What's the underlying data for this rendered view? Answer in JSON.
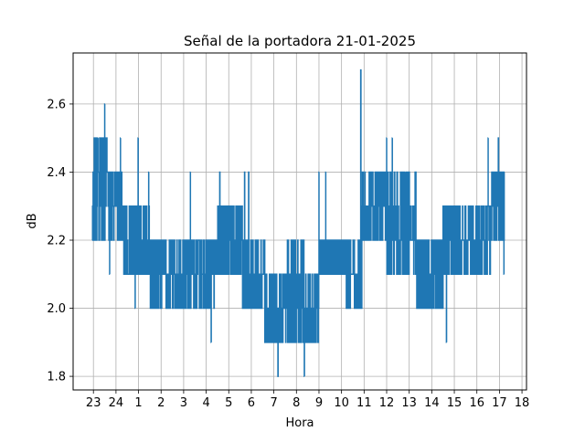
{
  "chart_data": {
    "type": "line",
    "title": "Señal de la portadora 21-01-2025",
    "xlabel": "Hora",
    "ylabel": "dB",
    "x_ticks": [
      "23",
      "24",
      "1",
      "2",
      "3",
      "4",
      "5",
      "6",
      "7",
      "8",
      "9",
      "10",
      "11",
      "12",
      "13",
      "14",
      "15",
      "16",
      "17",
      "18"
    ],
    "x_tick_positions": [
      23,
      24,
      25,
      26,
      27,
      28,
      29,
      30,
      31,
      32,
      33,
      34,
      35,
      36,
      37,
      38,
      39,
      40,
      41,
      42
    ],
    "xlim": [
      22.1,
      42.2
    ],
    "ylim": [
      1.76,
      2.75
    ],
    "y_ticks": [
      1.8,
      2.0,
      2.2,
      2.4,
      2.6
    ],
    "grid": true,
    "series": [
      {
        "color": "#1f77b4",
        "segments": [
          {
            "x_start": 22.95,
            "x_end": 23.6,
            "low": 2.2,
            "high": 2.5
          },
          {
            "x_start": 23.6,
            "x_end": 24.3,
            "low": 2.2,
            "high": 2.4
          },
          {
            "x_start": 24.3,
            "x_end": 25.5,
            "low": 2.1,
            "high": 2.3
          },
          {
            "x_start": 25.5,
            "x_end": 27.0,
            "low": 2.0,
            "high": 2.2
          },
          {
            "x_start": 27.0,
            "x_end": 28.5,
            "low": 2.0,
            "high": 2.2
          },
          {
            "x_start": 28.5,
            "x_end": 29.6,
            "low": 2.1,
            "high": 2.3
          },
          {
            "x_start": 29.6,
            "x_end": 30.6,
            "low": 2.0,
            "high": 2.2
          },
          {
            "x_start": 30.6,
            "x_end": 31.6,
            "low": 1.9,
            "high": 2.1
          },
          {
            "x_start": 31.6,
            "x_end": 32.4,
            "low": 1.9,
            "high": 2.2
          },
          {
            "x_start": 32.4,
            "x_end": 33.0,
            "low": 1.9,
            "high": 2.1
          },
          {
            "x_start": 33.0,
            "x_end": 34.2,
            "low": 2.1,
            "high": 2.2
          },
          {
            "x_start": 34.2,
            "x_end": 34.9,
            "low": 2.0,
            "high": 2.2
          },
          {
            "x_start": 34.9,
            "x_end": 36.0,
            "low": 2.2,
            "high": 2.4
          },
          {
            "x_start": 36.0,
            "x_end": 37.3,
            "low": 2.1,
            "high": 2.4
          },
          {
            "x_start": 37.3,
            "x_end": 38.5,
            "low": 2.0,
            "high": 2.2
          },
          {
            "x_start": 38.5,
            "x_end": 39.6,
            "low": 2.1,
            "high": 2.3
          },
          {
            "x_start": 39.6,
            "x_end": 40.6,
            "low": 2.1,
            "high": 2.3
          },
          {
            "x_start": 40.6,
            "x_end": 41.22,
            "low": 2.2,
            "high": 2.4
          }
        ],
        "spikes": [
          {
            "x": 23.5,
            "y": 2.6
          },
          {
            "x": 23.3,
            "y": 2.5
          },
          {
            "x": 23.2,
            "y": 2.5
          },
          {
            "x": 23.72,
            "y": 2.1
          },
          {
            "x": 24.2,
            "y": 2.5
          },
          {
            "x": 24.85,
            "y": 2.0
          },
          {
            "x": 24.98,
            "y": 2.5
          },
          {
            "x": 25.45,
            "y": 2.4
          },
          {
            "x": 27.3,
            "y": 2.4
          },
          {
            "x": 28.22,
            "y": 1.9
          },
          {
            "x": 28.6,
            "y": 2.4
          },
          {
            "x": 29.7,
            "y": 2.4
          },
          {
            "x": 29.88,
            "y": 2.4
          },
          {
            "x": 30.65,
            "y": 1.9
          },
          {
            "x": 31.18,
            "y": 1.8
          },
          {
            "x": 32.35,
            "y": 1.8
          },
          {
            "x": 32.65,
            "y": 1.9
          },
          {
            "x": 33.0,
            "y": 2.4
          },
          {
            "x": 33.3,
            "y": 2.4
          },
          {
            "x": 34.85,
            "y": 2.7
          },
          {
            "x": 35.6,
            "y": 2.4
          },
          {
            "x": 36.0,
            "y": 2.5
          },
          {
            "x": 36.25,
            "y": 2.5
          },
          {
            "x": 36.8,
            "y": 2.4
          },
          {
            "x": 37.0,
            "y": 2.4
          },
          {
            "x": 38.65,
            "y": 1.9
          },
          {
            "x": 40.5,
            "y": 2.5
          },
          {
            "x": 40.95,
            "y": 2.5
          },
          {
            "x": 41.2,
            "y": 2.1
          }
        ]
      }
    ]
  }
}
